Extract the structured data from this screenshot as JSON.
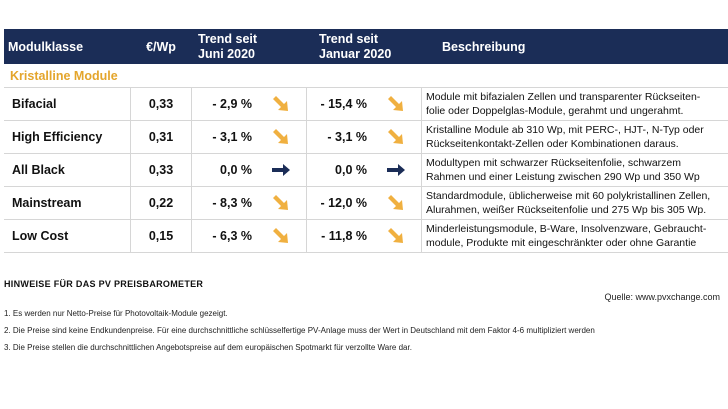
{
  "header": {
    "col_class": "Modulklasse",
    "col_price": "€/Wp",
    "col_trend1_a": "Trend seit",
    "col_trend1_b": "Juni 2020",
    "col_trend2_a": "Trend seit",
    "col_trend2_b": "Januar 2020",
    "col_desc": "Beschreibung"
  },
  "section_label": "Kristalline Module",
  "rows": [
    {
      "name": "Bifacial",
      "price": "0,33",
      "trend1": "- 2,9 %",
      "arrow1": "down",
      "trend2": "- 15,4 %",
      "arrow2": "down",
      "desc1": "Module mit bifazialen Zellen und transparenter Rückseiten-",
      "desc2": "folie oder Doppelglas-Module, gerahmt und ungerahmt."
    },
    {
      "name": "High Efficiency",
      "price": "0,31",
      "trend1": "-   3,1 %",
      "arrow1": "down",
      "trend2": "-   3,1 %",
      "arrow2": "down",
      "desc1": "Kristalline Module ab 310 Wp, mit PERC-, HJT-, N-Typ oder",
      "desc2": "Rückseitenkontakt-Zellen oder Kombinationen daraus."
    },
    {
      "name": "All Black",
      "price": "0,33",
      "trend1": "0,0 %",
      "arrow1": "right",
      "trend2": "0,0 %",
      "arrow2": "right",
      "desc1": "Modultypen mit schwarzer Rückseitenfolie, schwarzem",
      "desc2": "Rahmen und einer Leistung  zwischen 290 Wp und 350 Wp"
    },
    {
      "name": "Mainstream",
      "price": "0,22",
      "trend1": "- 8,3 %",
      "arrow1": "down",
      "trend2": "- 12,0 %",
      "arrow2": "down",
      "desc1": "Standardmodule, üblicherweise mit 60 polykristallinen Zellen,",
      "desc2": "Alurahmen, weißer Rückseitenfolie und 275 Wp bis 305 Wp."
    },
    {
      "name": "Low Cost",
      "price": "0,15",
      "trend1": "- 6,3 %",
      "arrow1": "down",
      "trend2": "- 11,8 %",
      "arrow2": "down",
      "desc1": "Minderleistungsmodule, B-Ware, Insolvenzware, Gebraucht-",
      "desc2": "module, Produkte mit eingeschränkter oder ohne Garantie"
    }
  ],
  "source": "Quelle: www.pvxchange.com",
  "notes_title": "HINWEISE FÜR DAS PV PREISBAROMETER",
  "notes": [
    "1.  Es werden nur Netto-Preise für Photovoltaik-Module gezeigt.",
    "2. Die Preise sind keine Endkundenpreise. Für eine durchschnittliche schlüsselfertige PV-Anlage muss der Wert in Deutschland mit dem Faktor 4-6 multipliziert werden",
    "3. Die Preise stellen die durchschnittlichen Angebotspreise auf dem europäischen Spotmarkt für verzollte Ware dar."
  ],
  "colors": {
    "header_bg": "#1b2d57",
    "accent": "#e4a52b",
    "arrow_down": "#f0b040",
    "arrow_right": "#1b2d57"
  }
}
